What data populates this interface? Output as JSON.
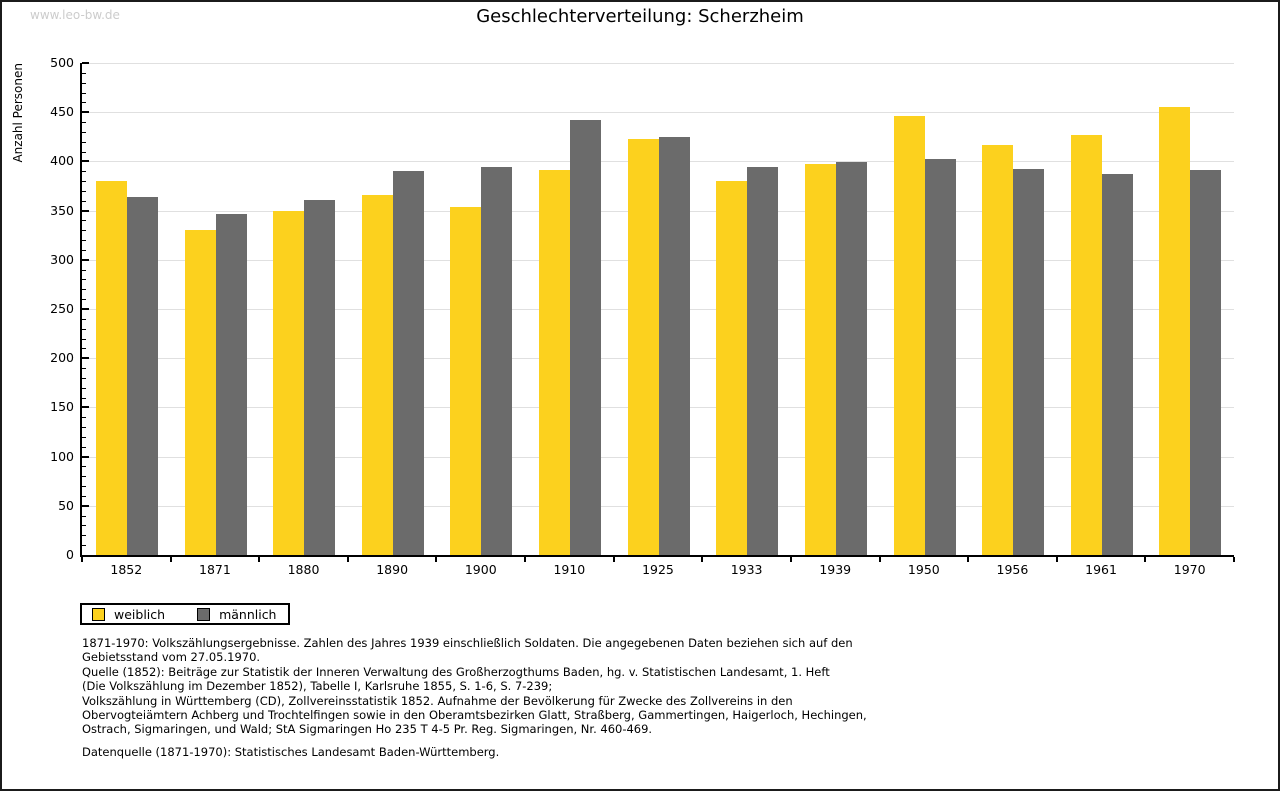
{
  "page": {
    "watermark": "www.leo-bw.de",
    "title": "Geschlechterverteilung: Scherzheim"
  },
  "chart_data": {
    "type": "bar",
    "title": "Geschlechterverteilung: Scherzheim",
    "xlabel": "",
    "ylabel": "Anzahl Personen",
    "ylim": [
      0,
      500
    ],
    "ytick_step": 50,
    "ytick_minor_step": 10,
    "grid": true,
    "legend_position": "bottom-left",
    "categories": [
      "1852",
      "1871",
      "1880",
      "1890",
      "1900",
      "1910",
      "1925",
      "1933",
      "1939",
      "1950",
      "1956",
      "1961",
      "1970"
    ],
    "series": [
      {
        "name": "weiblich",
        "color": "#FCD11E",
        "values": [
          380,
          330,
          350,
          366,
          354,
          391,
          423,
          380,
          397,
          446,
          417,
          427,
          455
        ]
      },
      {
        "name": "männlich",
        "color": "#6B6B6B",
        "values": [
          364,
          347,
          361,
          390,
          394,
          442,
          425,
          394,
          399,
          402,
          392,
          387,
          391
        ]
      }
    ]
  },
  "colors": {
    "axis": "#000000",
    "gridline": "#e0e0e0",
    "watermark": "#cccccc",
    "weiblich": "#FCD11E",
    "maennlich": "#6B6B6B"
  },
  "notes": {
    "lines": [
      "1871-1970: Volkszählungsergebnisse. Zahlen des Jahres 1939 einschließlich Soldaten. Die angegebenen Daten beziehen sich auf den",
      "Gebietsstand vom 27.05.1970.",
      "Quelle (1852): Beiträge zur Statistik der Inneren Verwaltung des Großherzogthums Baden, hg. v. Statistischen Landesamt, 1. Heft",
      "(Die Volkszählung im Dezember 1852), Tabelle I, Karlsruhe 1855, S. 1-6, S. 7-239;",
      "Volkszählung in Württemberg (CD), Zollvereinsstatistik 1852. Aufnahme der Bevölkerung für Zwecke des Zollvereins in den",
      "Obervogteiämtern Achberg und Trochtelfingen sowie in den Oberamtsbezirken Glatt, Straßberg, Gammertingen, Haigerloch, Hechingen,",
      "Ostrach, Sigmaringen, und Wald; StA Sigmaringen Ho 235 T 4-5 Pr. Reg. Sigmaringen, Nr. 460-469."
    ],
    "datenquelle": "Datenquelle (1871-1970): Statistisches Landesamt Baden-Württemberg."
  }
}
